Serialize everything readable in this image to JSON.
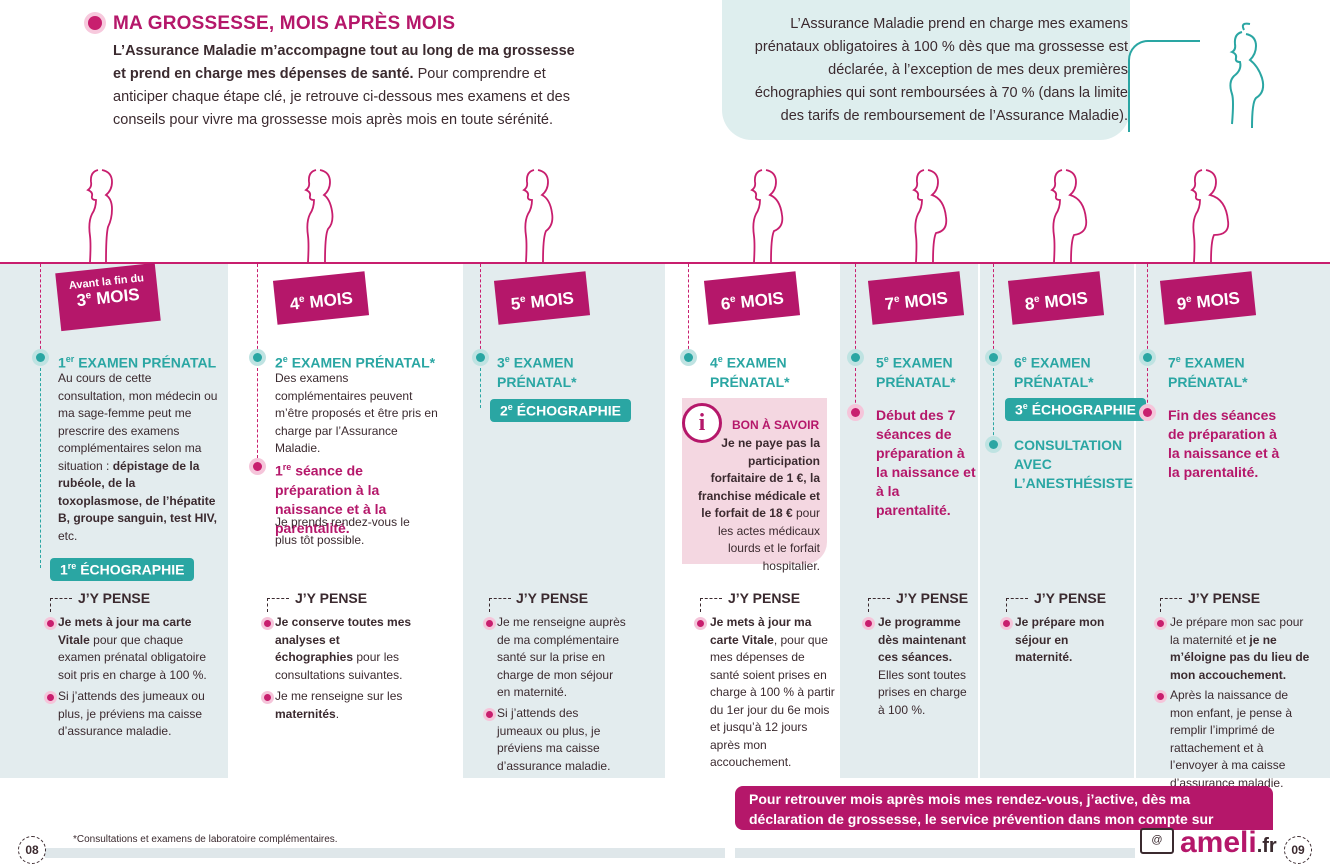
{
  "header": {
    "title": "MA GROSSESSE, MOIS APRÈS MOIS",
    "lead_bold": "L’Assurance Maladie m’accompagne tout au long de ma grossesse et prend en charge mes dépenses de santé.",
    "lead_rest": " Pour comprendre et anticiper chaque étape clé, je retrouve ci-dessous mes examens et des conseils pour vivre ma grossesse mois après mois en toute sérénité."
  },
  "callout": "L’Assurance Maladie prend en charge mes examens prénataux obligatoires à 100 % dès que ma grossesse est déclarée, à l’exception de mes deux premières échographies qui sont remboursées à 70 % (dans la limite des tarifs de remboursement de l’Assurance Maladie).",
  "months": [
    {
      "pre": "Avant la fin du",
      "num": "3",
      "sup": "e",
      "label": "MOIS"
    },
    {
      "num": "4",
      "sup": "e",
      "label": "MOIS"
    },
    {
      "num": "5",
      "sup": "e",
      "label": "MOIS"
    },
    {
      "num": "6",
      "sup": "e",
      "label": "MOIS"
    },
    {
      "num": "7",
      "sup": "e",
      "label": "MOIS"
    },
    {
      "num": "8",
      "sup": "e",
      "label": "MOIS"
    },
    {
      "num": "9",
      "sup": "e",
      "label": "MOIS"
    }
  ],
  "col1": {
    "exam_num": "1",
    "exam_sup": "er",
    "exam_label": "EXAMEN PRÉNATAL",
    "text_a": "Au cours de cette consultation, mon médecin ou ma sage-femme peut me prescrire des examens complémentaires selon ma situation : ",
    "text_b": "dépistage de la rubéole, de la toxoplasmose, de l’hépatite B, groupe sanguin, test HIV,",
    "text_c": " etc.",
    "echo_num": "1",
    "echo_sup": "re",
    "echo_label": "ÉCHOGRAPHIE",
    "think_title": "J’Y PENSE",
    "tip1_b": "Je mets à jour ma carte Vitale",
    "tip1_r": " pour que chaque examen prénatal obligatoire soit pris en charge à 100 %.",
    "tip2": "Si j’attends des jumeaux ou plus, je préviens ma caisse d’assurance maladie."
  },
  "col2": {
    "exam_num": "2",
    "exam_sup": "e",
    "exam_label": "EXAMEN PRÉNATAL*",
    "text": "Des examens complémentaires peuvent m’être proposés et être pris en charge par l’Assurance Maladie.",
    "prep_num": "1",
    "prep_sup": "re",
    "prep_label": "séance de préparation à la naissance et à la parentalité.",
    "prep_text": "Je prends rendez-vous le plus tôt possible.",
    "think_title": "J’Y PENSE",
    "tip1_b1": "Je conserve toutes mes analyses et échographies",
    "tip1_r": " pour les consultations suivantes.",
    "tip2_r": "Je me renseigne sur les ",
    "tip2_b": "maternités",
    "tip2_end": "."
  },
  "col3": {
    "exam_num": "3",
    "exam_sup": "e",
    "exam_label": "EXAMEN PRÉNATAL*",
    "echo_num": "2",
    "echo_sup": "e",
    "echo_label": "ÉCHOGRAPHIE",
    "think_title": "J’Y PENSE",
    "tip1": "Je me renseigne auprès de ma complémentaire santé sur la prise en charge de mon séjour en maternité.",
    "tip2": "Si j’attends des jumeaux ou plus, je préviens ma caisse d’assurance maladie."
  },
  "col4": {
    "exam_num": "4",
    "exam_sup": "e",
    "exam_label": "EXAMEN PRÉNATAL*",
    "info_icon": "i",
    "info_title": "BON À SAVOIR",
    "info_bold": "Je ne paye pas la participation forfaitaire de 1 €, la franchise médicale et le forfait de 18 €",
    "info_rest": " pour les actes médicaux lourds et le forfait hospitalier.",
    "think_title": "J’Y PENSE",
    "tip1_b": "Je mets à jour ma carte Vitale",
    "tip1_r": ", pour que mes dépenses de santé soient prises en charge à 100 % à partir du 1er jour du 6e mois et jusqu’à 12 jours après mon accouchement."
  },
  "col5": {
    "exam_num": "5",
    "exam_sup": "e",
    "exam_label": "EXAMEN PRÉNATAL*",
    "prep_label": "Début des 7 séances de préparation à la naissance et à la parentalité.",
    "think_title": "J’Y PENSE",
    "tip1_b": "Je programme dès maintenant ces séances.",
    "tip1_r": " Elles sont toutes prises en charge à 100 %."
  },
  "col6": {
    "exam_num": "6",
    "exam_sup": "e",
    "exam_label": "EXAMEN PRÉNATAL*",
    "echo_num": "3",
    "echo_sup": "e",
    "echo_label": "ÉCHOGRAPHIE",
    "consult_label": "CONSULTATION AVEC L’ANESTHÉSISTE",
    "think_title": "J’Y PENSE",
    "tip1_b": "Je prépare mon séjour en maternité."
  },
  "col7": {
    "exam_num": "7",
    "exam_sup": "e",
    "exam_label": "EXAMEN PRÉNATAL*",
    "end_label": "Fin des séances de préparation à la naissance et à la parentalité.",
    "think_title": "J’Y PENSE",
    "tip1_r": "Je prépare mon sac pour la maternité et ",
    "tip1_b": "je ne m’éloigne pas du lieu de mon accouchement.",
    "tip2": "Après la naissance de mon enfant, je pense à remplir l’imprimé de rattachement et à l’envoyer à ma caisse d’assurance maladie."
  },
  "footer": {
    "banner": "Pour retrouver mois après mois mes rendez-vous, j’active, dès ma déclaration de grossesse, le service prévention dans mon compte sur",
    "footnote": "*Consultations et examens de laboratoire complémentaires.",
    "page_left": "08",
    "page_right": "09",
    "brand": "ameli",
    "brand_tld": ".fr",
    "laptop_glyph": "@"
  },
  "colors": {
    "accent": "#b5176a",
    "teal": "#2aa6a3",
    "panel": "#e3ecee"
  }
}
